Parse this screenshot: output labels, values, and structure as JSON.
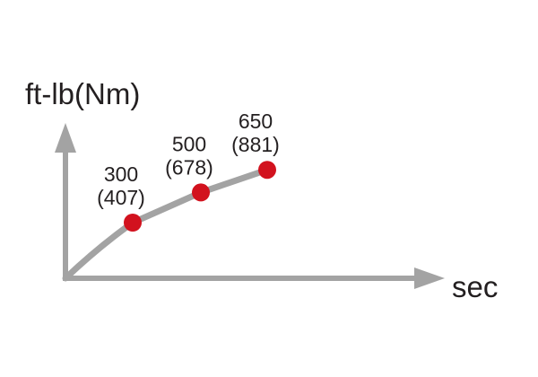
{
  "chart_data": {
    "type": "line",
    "ylabel": "ft-lb(Nm)",
    "xlabel": "sec",
    "grid": false,
    "series": [
      {
        "values": [
          300,
          500,
          650
        ],
        "values_nm": [
          407,
          678,
          881
        ],
        "labels": [
          "300",
          "500",
          "650"
        ],
        "labels_nm": [
          "(407)",
          "(678)",
          "(881)"
        ]
      }
    ],
    "colors": {
      "axis": "#a3a3a3",
      "line": "#a3a3a3",
      "point": "#d2121e",
      "text": "#231f20"
    }
  }
}
